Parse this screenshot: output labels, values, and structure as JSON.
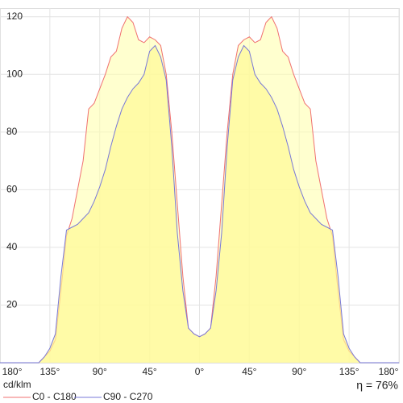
{
  "chart_data": {
    "type": "area",
    "x": [
      -180,
      -175,
      -170,
      -165,
      -160,
      -155,
      -150,
      -145,
      -140,
      -135,
      -130,
      -125,
      -120,
      -115,
      -110,
      -105,
      -100,
      -95,
      -90,
      -85,
      -80,
      -75,
      -70,
      -65,
      -60,
      -55,
      -50,
      -45,
      -40,
      -35,
      -30,
      -25,
      -20,
      -15,
      -10,
      -5,
      0,
      5,
      10,
      15,
      20,
      25,
      30,
      35,
      40,
      45,
      50,
      55,
      60,
      65,
      70,
      75,
      80,
      85,
      90,
      95,
      100,
      105,
      110,
      115,
      120,
      125,
      130,
      135,
      140,
      145,
      150,
      155,
      160,
      165,
      170,
      175,
      180
    ],
    "series": [
      {
        "name": "C0 - C180",
        "color": "#f07070",
        "values": [
          0,
          0,
          0,
          0,
          0,
          0,
          0,
          0,
          2,
          4,
          8,
          25,
          44,
          50,
          60,
          70,
          88,
          90,
          95,
          100,
          106,
          108,
          116,
          120,
          118,
          112,
          111,
          113,
          112,
          110,
          100,
          80,
          55,
          30,
          12,
          10,
          9,
          10,
          12,
          30,
          55,
          80,
          100,
          110,
          112,
          113,
          111,
          112,
          118,
          120,
          116,
          108,
          106,
          100,
          95,
          90,
          88,
          70,
          60,
          50,
          44,
          25,
          8,
          4,
          2,
          0,
          0,
          0,
          0,
          0,
          0,
          0,
          0
        ]
      },
      {
        "name": "C90 - C270",
        "color": "#7878d8",
        "values": [
          0,
          0,
          0,
          0,
          0,
          0,
          0,
          0,
          2,
          5,
          10,
          30,
          46,
          47,
          48,
          50,
          52,
          56,
          61,
          67,
          75,
          82,
          88,
          92,
          95,
          97,
          100,
          108,
          110,
          106,
          98,
          75,
          45,
          25,
          12,
          10,
          9,
          10,
          12,
          25,
          45,
          75,
          98,
          106,
          110,
          108,
          100,
          97,
          95,
          92,
          88,
          82,
          75,
          67,
          61,
          56,
          52,
          50,
          48,
          47,
          46,
          30,
          10,
          5,
          2,
          0,
          0,
          0,
          0,
          0,
          0,
          0,
          0
        ]
      }
    ],
    "xlim": [
      -180,
      180
    ],
    "xticks": [
      {
        "value": -180,
        "label": "180°"
      },
      {
        "value": -135,
        "label": "135°"
      },
      {
        "value": -90,
        "label": "90°"
      },
      {
        "value": -45,
        "label": "45°"
      },
      {
        "value": 0,
        "label": "0°"
      },
      {
        "value": 45,
        "label": "45°"
      },
      {
        "value": 90,
        "label": "90°"
      },
      {
        "value": 135,
        "label": "135°"
      },
      {
        "value": 180,
        "label": "180°"
      }
    ],
    "ylim": [
      0,
      123
    ],
    "yticks": [
      20,
      40,
      60,
      80,
      100,
      120
    ],
    "unit_label": "cd/klm",
    "efficiency_label": "η = 76%",
    "grid": true
  }
}
